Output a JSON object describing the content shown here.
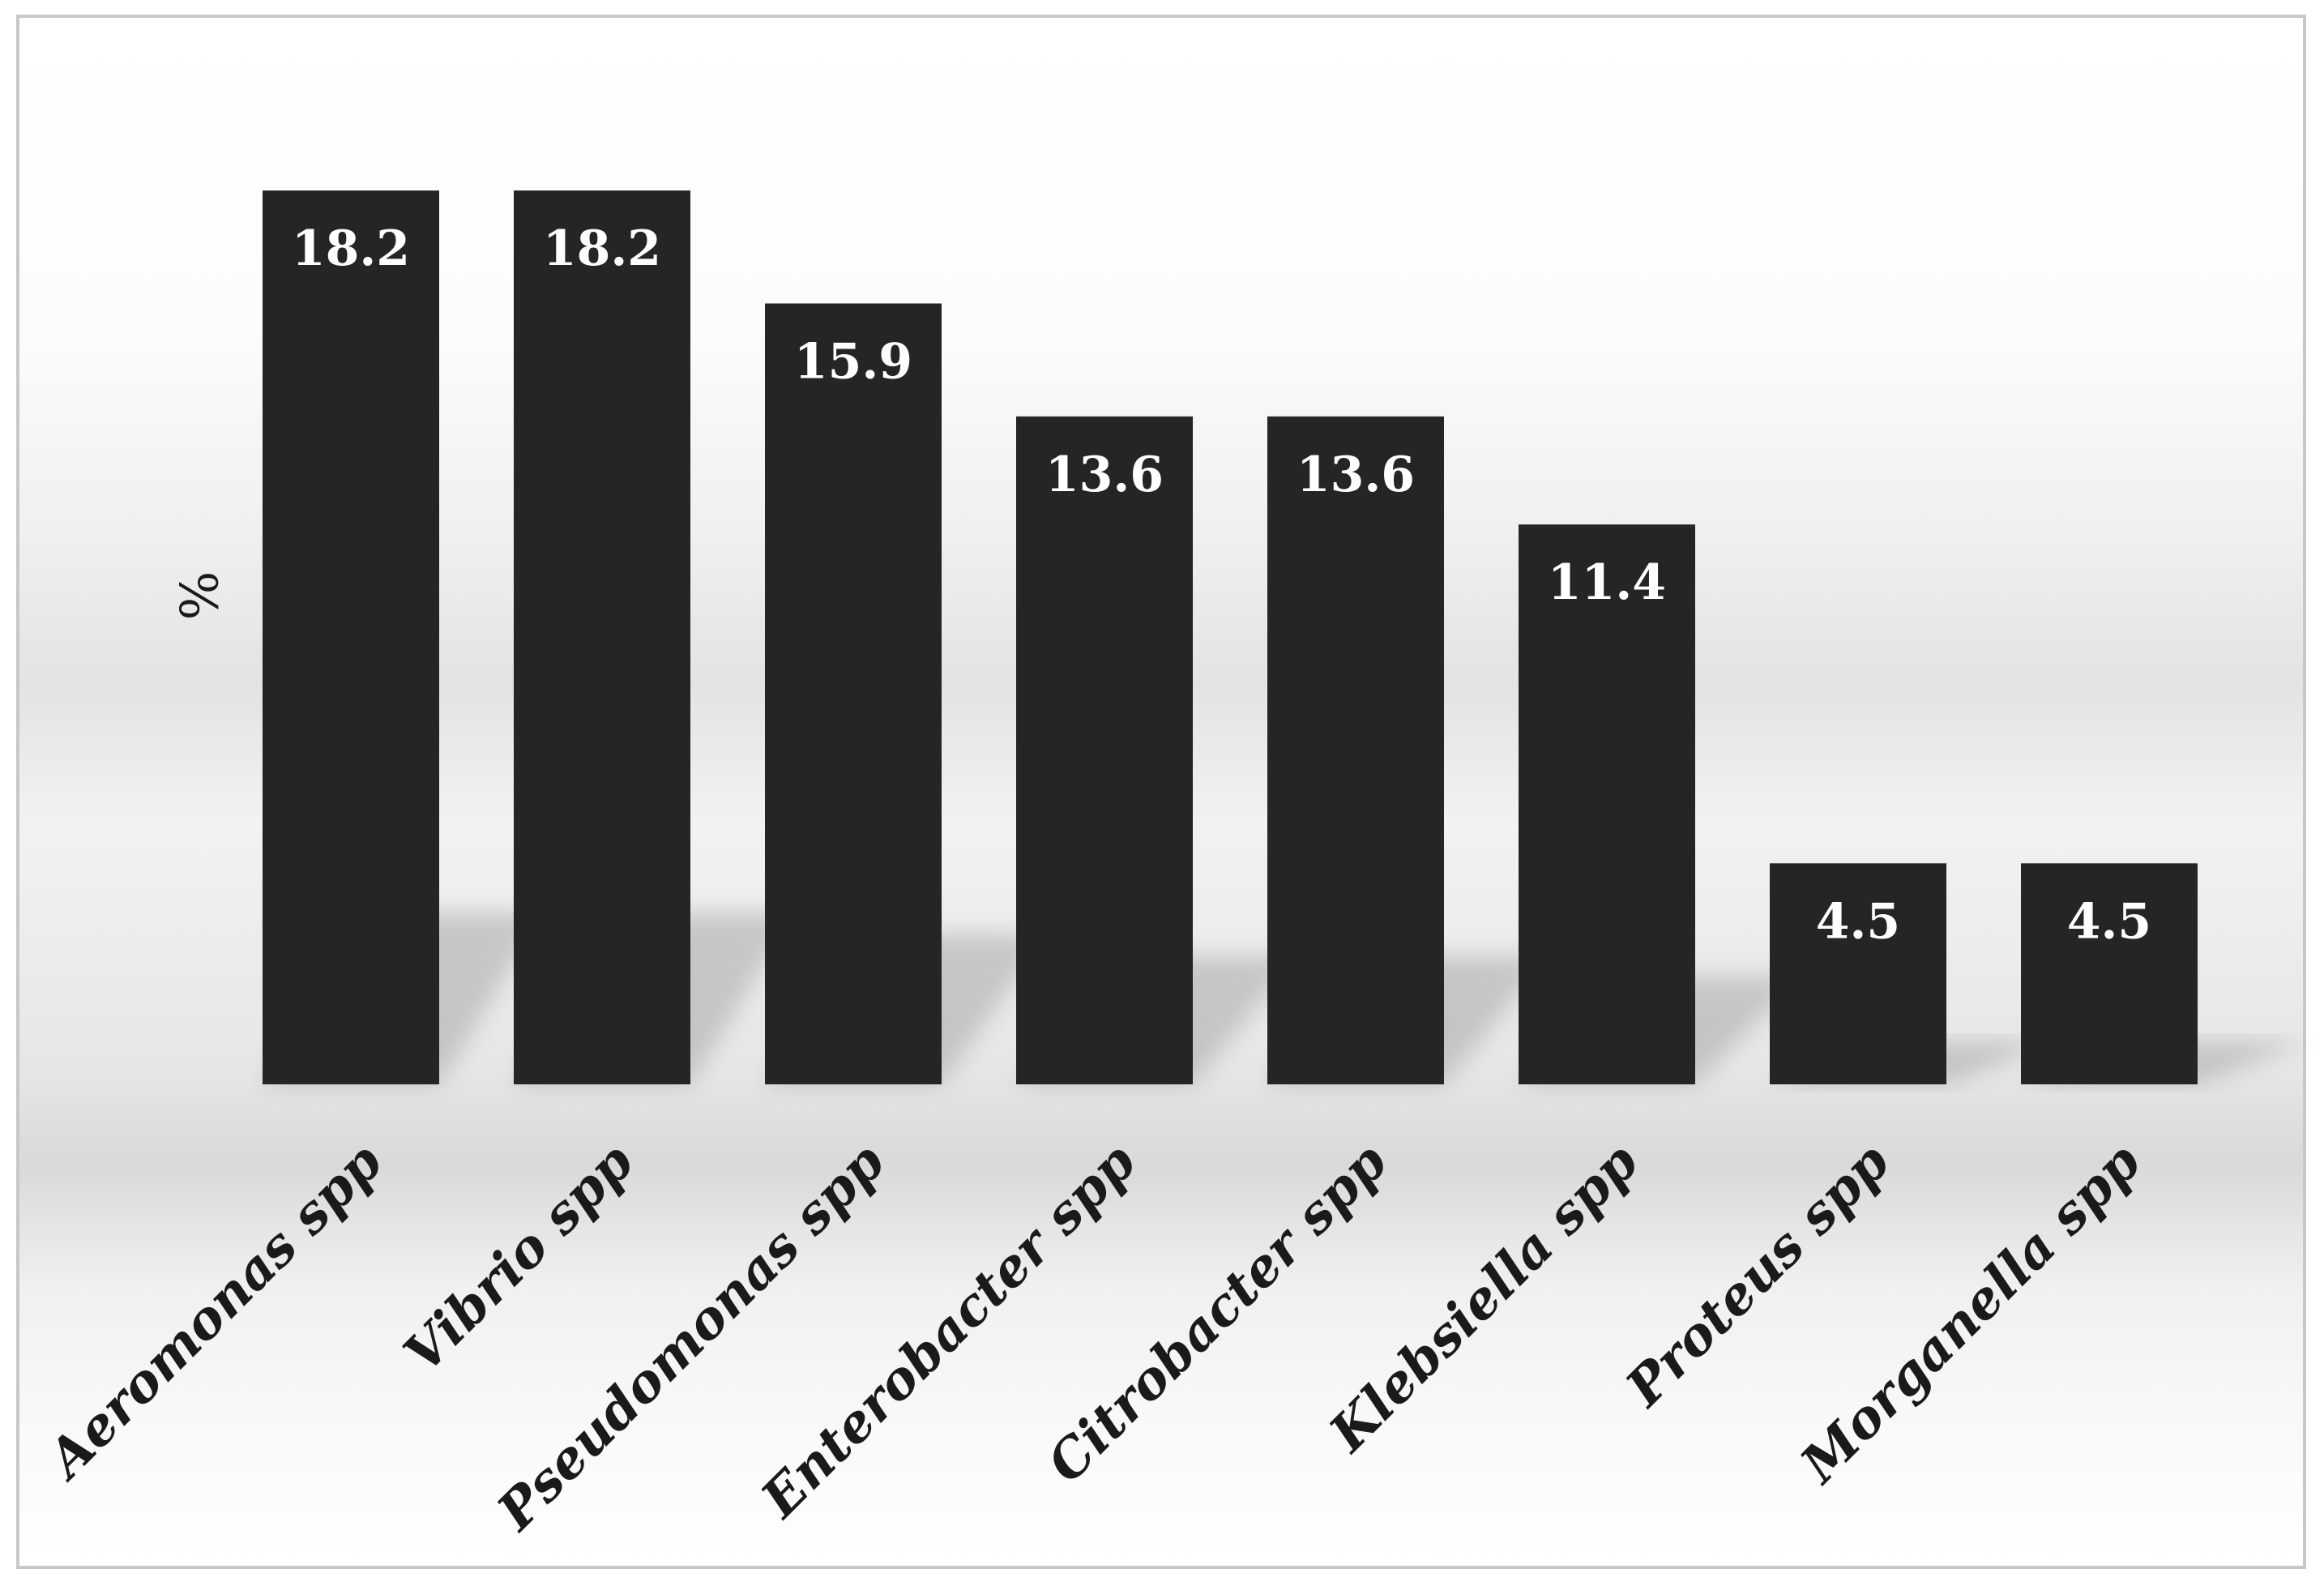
{
  "chart_data": {
    "type": "bar",
    "categories": [
      "Aeromonas spp",
      "Vibrio spp",
      "Pseudomonas spp",
      "Enterobacter spp",
      "Citrobacter spp",
      "Klebsiella spp",
      "Proteus spp",
      "Morganella spp"
    ],
    "values": [
      18.2,
      18.2,
      15.9,
      13.6,
      13.6,
      11.4,
      4.5,
      4.5
    ],
    "data_labels": [
      "18.2",
      "18.2",
      "15.9",
      "13.6",
      "13.6",
      "11.4",
      "4.5",
      "4.5"
    ],
    "title": "",
    "xlabel": "",
    "ylabel": "%",
    "ylim": [
      0,
      20
    ],
    "grid": false,
    "legend": "none",
    "bar_color": "#252525",
    "label_color": "#ffffff"
  }
}
